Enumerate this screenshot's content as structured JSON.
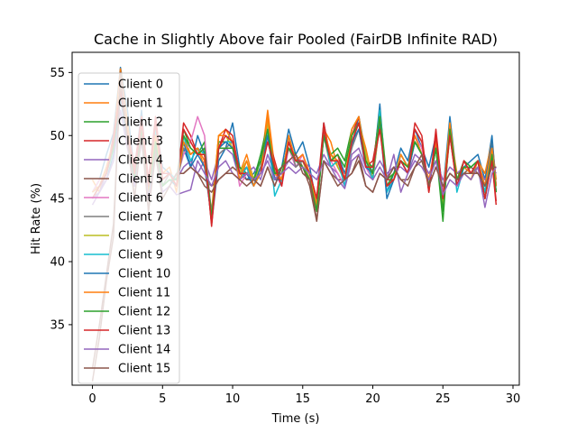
{
  "chart_data": {
    "type": "line",
    "title": "Cache in Slightly Above fair Pooled (FairDB Infinite RAD)",
    "xlabel": "Time (s)",
    "ylabel": "Hit Rate (%)",
    "xlim": [
      -1.45,
      30.45
    ],
    "ylim": [
      30.2,
      56.6
    ],
    "xticks": [
      0,
      5,
      10,
      15,
      20,
      25,
      30
    ],
    "yticks": [
      35,
      40,
      45,
      50,
      55
    ],
    "grid": false,
    "legend_position": "upper-left",
    "x": [
      0,
      0.5,
      1,
      1.5,
      2,
      2.5,
      3,
      3.5,
      4,
      4.5,
      5,
      5.5,
      6,
      6.5,
      7,
      7.5,
      8,
      8.5,
      9,
      9.5,
      10,
      10.5,
      11,
      11.5,
      12,
      12.5,
      13,
      13.5,
      14,
      14.5,
      15,
      15.5,
      16,
      16.5,
      17,
      17.5,
      18,
      18.5,
      19,
      19.5,
      20,
      20.5,
      21,
      21.5,
      22,
      22.5,
      23,
      23.5,
      24,
      24.5,
      25,
      25.5,
      26,
      26.5,
      27,
      27.5,
      28,
      28.5,
      28.8
    ],
    "series": [
      {
        "name": "Client 0",
        "color": "#1f77b4",
        "values": [
          45.5,
          46.5,
          48.5,
          50.2,
          55.4,
          52.0,
          47.0,
          52.0,
          45.5,
          51.0,
          47.5,
          47.0,
          46.0,
          49.0,
          47.5,
          50.0,
          48.5,
          43.0,
          48.0,
          49.0,
          51.0,
          47.5,
          46.5,
          47.0,
          48.0,
          50.5,
          46.5,
          47.5,
          50.5,
          48.5,
          49.5,
          47.5,
          44.5,
          51.0,
          48.0,
          48.5,
          47.0,
          49.0,
          51.5,
          48.5,
          47.0,
          52.5,
          45.5,
          47.0,
          49.0,
          48.0,
          50.5,
          49.0,
          47.5,
          50.0,
          45.5,
          51.5,
          46.5,
          47.5,
          48.0,
          48.5,
          46.5,
          50.0,
          46.0
        ]
      },
      {
        "name": "Client 1",
        "color": "#ff7f0e",
        "values": [
          46.5,
          45.5,
          47.5,
          49.5,
          55.3,
          51.0,
          46.5,
          51.5,
          46.0,
          50.5,
          47.0,
          47.5,
          45.5,
          50.0,
          48.5,
          49.0,
          47.5,
          44.0,
          50.0,
          50.5,
          49.5,
          47.0,
          48.5,
          46.5,
          47.5,
          52.0,
          47.5,
          46.5,
          49.5,
          48.0,
          48.0,
          47.0,
          45.0,
          50.5,
          49.5,
          47.5,
          46.5,
          50.0,
          51.0,
          49.0,
          46.5,
          51.5,
          46.0,
          46.5,
          48.5,
          47.5,
          50.0,
          48.5,
          46.5,
          49.5,
          44.5,
          50.5,
          47.0,
          47.0,
          46.5,
          48.0,
          47.0,
          49.5,
          46.5
        ]
      },
      {
        "name": "Client 2",
        "color": "#2ca02c",
        "values": [
          45.0,
          46.0,
          47.0,
          49.0,
          54.5,
          50.5,
          47.0,
          51.0,
          45.5,
          50.0,
          46.5,
          47.0,
          46.5,
          50.5,
          49.0,
          48.5,
          49.5,
          43.5,
          49.5,
          49.5,
          49.0,
          47.5,
          47.0,
          46.5,
          48.5,
          51.0,
          47.0,
          47.5,
          49.0,
          48.5,
          47.5,
          46.5,
          44.0,
          50.0,
          48.5,
          49.0,
          48.0,
          50.5,
          51.5,
          48.0,
          47.5,
          52.0,
          46.5,
          47.0,
          48.0,
          47.5,
          49.5,
          48.5,
          46.0,
          49.0,
          43.2,
          51.0,
          46.5,
          48.0,
          47.5,
          48.0,
          45.0,
          48.5,
          45.5
        ]
      },
      {
        "name": "Client 3",
        "color": "#d62728",
        "values": [
          45.0,
          46.0,
          47.0,
          50.0,
          54.0,
          50.5,
          47.5,
          51.5,
          46.5,
          51.5,
          47.0,
          47.0,
          46.0,
          51.0,
          50.0,
          48.5,
          49.0,
          42.8,
          49.0,
          50.5,
          50.0,
          47.0,
          47.5,
          46.5,
          47.0,
          50.0,
          48.0,
          46.0,
          50.0,
          48.0,
          48.5,
          47.0,
          45.0,
          51.0,
          48.0,
          48.5,
          46.5,
          50.0,
          51.5,
          47.5,
          48.0,
          51.0,
          46.5,
          46.5,
          48.0,
          47.0,
          51.0,
          50.0,
          45.5,
          50.5,
          45.0,
          50.0,
          46.0,
          48.0,
          47.0,
          48.0,
          45.0,
          48.0,
          44.5
        ]
      },
      {
        "name": "Client 4",
        "color": "#9467bd",
        "values": [
          44.5,
          45.5,
          47.0,
          49.5,
          54.0,
          50.0,
          47.0,
          51.0,
          45.0,
          49.5,
          46.0,
          46.5,
          46.5,
          47.5,
          48.0,
          47.0,
          48.0,
          46.5,
          48.5,
          49.0,
          48.5,
          46.5,
          47.0,
          47.5,
          46.5,
          48.5,
          47.0,
          47.0,
          48.0,
          47.5,
          48.0,
          47.5,
          47.0,
          48.5,
          47.5,
          47.0,
          46.0,
          48.5,
          49.0,
          47.5,
          47.0,
          48.0,
          47.0,
          47.5,
          47.5,
          47.0,
          48.5,
          48.0,
          47.0,
          48.0,
          46.5,
          47.5,
          47.0,
          47.5,
          47.0,
          47.5,
          46.5,
          47.5,
          47.0
        ]
      },
      {
        "name": "Client 5",
        "color": "#8c564b",
        "values": [
          30.5,
          34.0,
          38.5,
          42.0,
          55.0,
          50.0,
          45.0,
          50.5,
          44.0,
          49.0,
          45.5,
          46.0,
          47.0,
          47.0,
          47.5,
          47.0,
          46.5,
          46.0,
          46.5,
          47.0,
          47.5,
          47.0,
          46.5,
          46.5,
          46.0,
          47.5,
          46.0,
          47.5,
          48.0,
          48.5,
          47.5,
          46.0,
          43.2,
          48.0,
          47.0,
          46.5,
          46.5,
          47.0,
          48.5,
          46.0,
          45.5,
          47.0,
          46.5,
          47.5,
          46.5,
          46.5,
          47.5,
          48.0,
          46.0,
          47.5,
          46.0,
          47.0,
          46.5,
          47.0,
          47.5,
          47.0,
          46.0,
          47.5,
          47.5
        ]
      },
      {
        "name": "Client 6",
        "color": "#e377c2",
        "values": [
          45.5,
          46.5,
          47.0,
          49.0,
          54.5,
          50.5,
          46.5,
          51.0,
          45.5,
          50.5,
          46.5,
          47.0,
          46.5,
          48.5,
          49.5,
          51.5,
          50.0,
          43.5,
          49.0,
          49.5,
          49.5,
          46.0,
          47.0,
          46.5,
          47.0,
          50.0,
          47.0,
          46.0,
          49.0,
          47.5,
          48.5,
          46.5,
          45.0,
          50.0,
          48.0,
          47.0,
          46.0,
          49.5,
          51.0,
          47.5,
          46.5,
          51.0,
          46.0,
          46.5,
          48.0,
          47.0,
          50.0,
          49.0,
          46.0,
          49.5,
          45.5,
          50.5,
          46.5,
          47.5,
          47.0,
          47.5,
          45.5,
          48.5,
          45.5
        ]
      },
      {
        "name": "Client 7",
        "color": "#7f7f7f",
        "values": [
          45.0,
          46.0,
          47.5,
          49.5,
          54.0,
          50.0,
          46.5,
          50.5,
          45.0,
          50.0,
          46.0,
          47.0,
          46.0,
          49.0,
          48.5,
          49.0,
          48.0,
          44.0,
          48.5,
          49.0,
          49.5,
          47.0,
          47.5,
          46.0,
          47.5,
          50.0,
          46.5,
          46.5,
          50.0,
          47.5,
          48.0,
          46.5,
          44.5,
          50.0,
          47.5,
          48.0,
          46.5,
          49.0,
          50.5,
          47.5,
          47.0,
          51.0,
          46.0,
          46.5,
          48.0,
          47.0,
          49.5,
          48.5,
          46.0,
          49.0,
          45.0,
          50.0,
          46.5,
          47.5,
          47.0,
          47.5,
          45.5,
          48.5,
          45.5
        ]
      },
      {
        "name": "Client 8",
        "color": "#bcbd22",
        "values": [
          45.0,
          46.0,
          47.0,
          49.0,
          53.5,
          50.0,
          46.5,
          50.5,
          45.0,
          50.0,
          46.0,
          46.5,
          46.0,
          49.5,
          48.5,
          49.0,
          48.5,
          43.5,
          50.0,
          50.0,
          49.0,
          47.0,
          48.0,
          46.5,
          47.5,
          51.0,
          47.0,
          46.5,
          49.5,
          48.0,
          48.0,
          46.5,
          44.5,
          50.0,
          48.5,
          47.5,
          46.5,
          50.0,
          51.0,
          48.5,
          46.5,
          51.0,
          46.0,
          46.5,
          48.5,
          47.5,
          49.5,
          48.5,
          46.0,
          49.0,
          44.5,
          50.0,
          46.5,
          47.0,
          46.5,
          47.5,
          46.0,
          49.0,
          46.0
        ]
      },
      {
        "name": "Client 9",
        "color": "#17becf",
        "values": [
          45.5,
          46.0,
          47.0,
          49.0,
          54.0,
          50.5,
          46.5,
          51.0,
          45.5,
          50.5,
          46.5,
          47.0,
          46.5,
          50.0,
          48.0,
          49.0,
          48.5,
          43.5,
          49.0,
          49.5,
          49.5,
          46.5,
          47.5,
          46.0,
          47.0,
          50.5,
          45.2,
          46.5,
          50.0,
          48.0,
          48.0,
          47.0,
          44.5,
          50.5,
          47.5,
          48.0,
          46.0,
          49.5,
          51.0,
          48.0,
          46.5,
          52.0,
          45.5,
          46.5,
          48.5,
          47.5,
          50.0,
          48.5,
          46.0,
          49.5,
          45.0,
          51.0,
          45.5,
          47.5,
          47.0,
          48.0,
          45.5,
          49.0,
          45.5
        ]
      },
      {
        "name": "Client 10",
        "color": "#1f77b4",
        "values": [
          45.0,
          45.5,
          46.5,
          48.5,
          53.0,
          49.5,
          46.0,
          50.0,
          45.0,
          49.5,
          46.0,
          46.5,
          46.0,
          49.5,
          47.5,
          48.5,
          47.5,
          43.5,
          49.0,
          49.5,
          49.0,
          46.5,
          47.0,
          46.0,
          47.5,
          50.0,
          46.5,
          46.5,
          49.5,
          48.0,
          48.0,
          47.0,
          44.5,
          50.0,
          48.0,
          48.0,
          46.5,
          49.5,
          50.5,
          47.5,
          47.0,
          51.0,
          45.0,
          46.5,
          48.0,
          47.0,
          49.5,
          48.5,
          46.0,
          49.0,
          45.0,
          50.5,
          46.0,
          47.5,
          47.0,
          48.0,
          46.0,
          49.5,
          46.0
        ]
      },
      {
        "name": "Client 11",
        "color": "#ff7f0e",
        "values": [
          45.5,
          46.0,
          47.5,
          49.5,
          54.0,
          50.5,
          46.5,
          51.0,
          45.5,
          50.0,
          46.5,
          47.0,
          46.0,
          49.5,
          48.5,
          49.0,
          48.0,
          43.5,
          50.0,
          50.0,
          49.5,
          46.5,
          48.0,
          46.0,
          47.0,
          51.5,
          47.0,
          46.5,
          50.0,
          48.0,
          48.5,
          47.0,
          44.5,
          50.5,
          48.5,
          48.0,
          46.5,
          50.5,
          51.5,
          48.0,
          47.0,
          51.5,
          46.0,
          46.5,
          48.5,
          47.5,
          50.0,
          48.5,
          46.0,
          49.5,
          45.0,
          51.0,
          46.5,
          47.5,
          47.0,
          48.0,
          46.0,
          49.0,
          46.0
        ]
      },
      {
        "name": "Client 12",
        "color": "#2ca02c",
        "values": [
          45.0,
          46.0,
          47.0,
          49.0,
          53.5,
          50.0,
          46.5,
          50.5,
          45.0,
          49.5,
          46.0,
          46.5,
          46.5,
          50.0,
          49.0,
          48.5,
          49.0,
          43.5,
          49.0,
          49.0,
          49.0,
          47.0,
          47.0,
          46.5,
          48.0,
          50.5,
          47.0,
          47.0,
          49.0,
          48.0,
          47.5,
          46.5,
          44.0,
          50.0,
          48.0,
          48.5,
          47.5,
          50.0,
          51.0,
          48.0,
          47.0,
          51.5,
          46.0,
          47.0,
          48.0,
          47.5,
          49.5,
          48.5,
          46.0,
          49.0,
          44.0,
          50.5,
          46.5,
          47.5,
          47.5,
          48.0,
          45.0,
          48.5,
          45.5
        ]
      },
      {
        "name": "Client 13",
        "color": "#d62728",
        "values": [
          45.0,
          46.0,
          47.0,
          49.5,
          53.5,
          50.0,
          47.0,
          51.0,
          46.0,
          51.0,
          46.5,
          47.0,
          46.0,
          50.5,
          49.5,
          48.5,
          48.5,
          43.0,
          49.0,
          50.0,
          49.5,
          47.0,
          47.0,
          46.5,
          47.0,
          49.5,
          47.5,
          46.0,
          49.5,
          48.0,
          48.0,
          47.0,
          45.0,
          50.5,
          48.0,
          48.0,
          46.5,
          49.5,
          51.0,
          47.5,
          47.5,
          50.5,
          46.0,
          46.5,
          48.0,
          47.0,
          50.5,
          49.5,
          45.5,
          50.0,
          45.0,
          50.0,
          46.0,
          48.0,
          47.0,
          48.0,
          45.0,
          48.0,
          44.8
        ]
      },
      {
        "name": "Client 14",
        "color": "#9467bd",
        "values": [
          45.0,
          45.5,
          46.5,
          48.0,
          52.0,
          49.0,
          46.0,
          49.5,
          45.0,
          48.5,
          45.5,
          46.0,
          45.3,
          45.5,
          45.7,
          48.0,
          47.0,
          46.0,
          47.5,
          48.0,
          47.0,
          46.5,
          47.0,
          46.5,
          47.0,
          48.0,
          46.5,
          47.0,
          47.5,
          47.0,
          47.5,
          47.0,
          46.5,
          48.0,
          47.5,
          46.5,
          45.8,
          48.0,
          48.5,
          47.0,
          46.5,
          47.5,
          46.5,
          48.5,
          45.5,
          47.0,
          48.0,
          47.5,
          46.5,
          48.0,
          45.3,
          46.5,
          46.0,
          47.0,
          46.5,
          47.5,
          44.3,
          47.0,
          47.5
        ]
      },
      {
        "name": "Client 15",
        "color": "#8c564b",
        "values": [
          31.5,
          35.0,
          39.0,
          43.0,
          54.5,
          49.5,
          45.0,
          50.0,
          44.0,
          48.5,
          45.0,
          46.0,
          47.0,
          47.0,
          47.5,
          47.0,
          46.0,
          45.5,
          46.5,
          47.0,
          47.0,
          46.5,
          46.0,
          46.5,
          46.0,
          47.5,
          46.0,
          47.5,
          48.0,
          48.5,
          47.0,
          46.5,
          43.3,
          48.0,
          47.0,
          46.0,
          46.5,
          47.0,
          48.0,
          46.0,
          45.5,
          47.0,
          46.5,
          47.5,
          46.5,
          46.0,
          47.5,
          48.5,
          46.0,
          47.5,
          46.0,
          47.0,
          46.5,
          47.0,
          47.0,
          47.0,
          46.0,
          47.5,
          47.5
        ]
      }
    ]
  }
}
